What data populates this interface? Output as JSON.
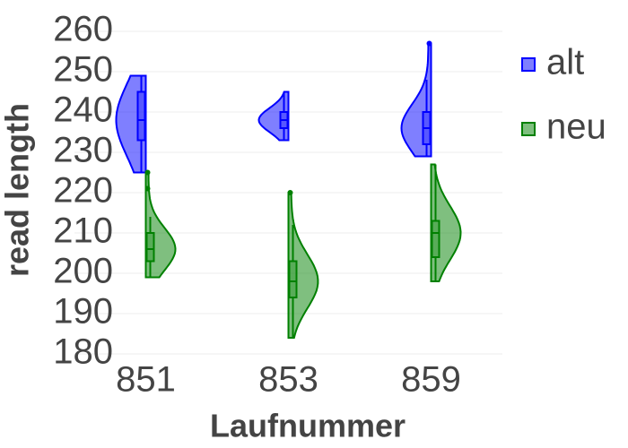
{
  "chart_data": {
    "type": "violin",
    "x_label": "Laufnummer",
    "y_label": "read length",
    "categories": [
      "851",
      "853",
      "859"
    ],
    "ylim": [
      180,
      260
    ],
    "yticks": [
      180,
      190,
      200,
      210,
      220,
      230,
      240,
      250,
      260
    ],
    "grid": true,
    "legend": "right",
    "series": [
      {
        "name": "alt",
        "color": "#0000ff",
        "side": "negative",
        "min": [
          225,
          233,
          229
        ],
        "q1": [
          233,
          236,
          232
        ],
        "median": [
          238,
          238,
          236
        ],
        "q3": [
          245,
          240,
          240
        ],
        "max": [
          249,
          245,
          248
        ],
        "outliers": [
          [],
          [],
          [
            257
          ]
        ]
      },
      {
        "name": "neu",
        "color": "#008000",
        "side": "positive",
        "min": [
          199,
          184,
          198
        ],
        "q1": [
          203,
          194,
          204
        ],
        "median": [
          206,
          198,
          210
        ],
        "q3": [
          210,
          203,
          213
        ],
        "max": [
          214,
          212,
          227
        ],
        "outliers": [
          [
            221,
            225
          ],
          [
            220
          ],
          []
        ]
      }
    ]
  }
}
